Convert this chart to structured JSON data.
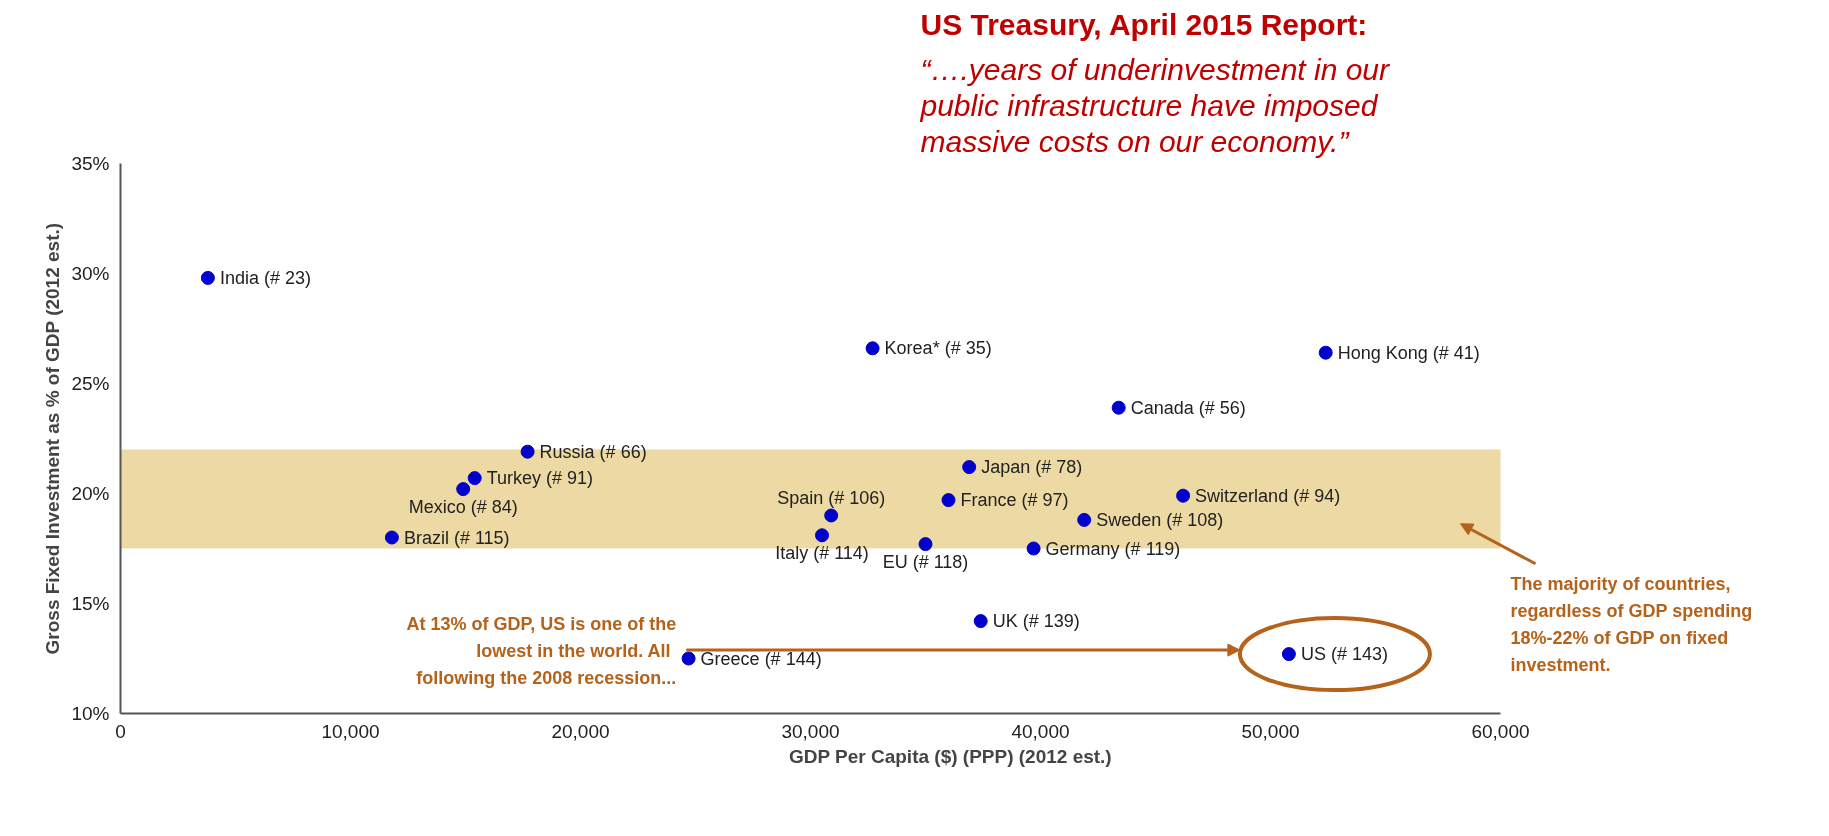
{
  "chart_data": {
    "type": "scatter",
    "title": "US Treasury, April 2015 Report:",
    "subtitle": "“….years of underinvestment in our public infrastructure have imposed massive costs on our economy.”",
    "xlabel": "GDP Per Capita ($) (PPP) (2012 est.)",
    "ylabel": "Gross Fixed Investment as % of GDP (2012 est.)",
    "xlim": [
      0,
      60000
    ],
    "ylim": [
      10,
      35
    ],
    "xticks": [
      0,
      {
        "value": 10000,
        "label": "10,000"
      },
      {
        "value": 20000,
        "label": "20,000"
      },
      {
        "value": 30000,
        "label": "30,000"
      },
      {
        "value": 40000,
        "label": "40,000"
      },
      {
        "value": 50000,
        "label": "50,000"
      },
      {
        "value": 60000,
        "label": "60,000"
      }
    ],
    "yticks": [
      {
        "value": 10,
        "label": "10%"
      },
      {
        "value": 15,
        "label": "15%"
      },
      {
        "value": 20,
        "label": "20%"
      },
      {
        "value": 25,
        "label": "25%"
      },
      {
        "value": 30,
        "label": "30%"
      },
      {
        "value": 35,
        "label": "35%"
      }
    ],
    "grid": false,
    "legend": false,
    "marker": "circle",
    "bands": [
      {
        "axis": "y",
        "from": 17.5,
        "to": 22,
        "color": "#ecd9a3"
      }
    ],
    "annotations": [
      "At 13% of GDP, US is one of the lowest in the world.  All following the 2008 recession...",
      "The majority of countries, regardless of GDP spending 18%-22% of GDP on fixed investment."
    ],
    "series": [
      {
        "name": "India (# 23)",
        "color": "#0000cc",
        "x": [
          3800
        ],
        "values": [
          29.8
        ]
      },
      {
        "name": "Korea* (# 35)",
        "color": "#0000cc",
        "x": [
          32700
        ],
        "values": [
          26.6
        ]
      },
      {
        "name": "Hong Kong (# 41)",
        "color": "#0000cc",
        "x": [
          52400
        ],
        "values": [
          26.4
        ]
      },
      {
        "name": "Canada (# 56)",
        "color": "#0000cc",
        "x": [
          43400
        ],
        "values": [
          23.9
        ]
      },
      {
        "name": "Russia (# 66)",
        "color": "#0000cc",
        "x": [
          17700
        ],
        "values": [
          21.9
        ]
      },
      {
        "name": "Japan (# 78)",
        "color": "#0000cc",
        "x": [
          36900
        ],
        "values": [
          21.2
        ]
      },
      {
        "name": "Turkey (# 91)",
        "color": "#0000cc",
        "x": [
          15400
        ],
        "values": [
          20.7
        ]
      },
      {
        "name": "Mexico (# 84)",
        "color": "#0000cc",
        "x": [
          14900
        ],
        "values": [
          20.2
        ]
      },
      {
        "name": "Switzerland (# 94)",
        "color": "#0000cc",
        "x": [
          46200
        ],
        "values": [
          19.9
        ]
      },
      {
        "name": "France (# 97)",
        "color": "#0000cc",
        "x": [
          36000
        ],
        "values": [
          19.7
        ]
      },
      {
        "name": "Spain (# 106)",
        "color": "#0000cc",
        "x": [
          30900
        ],
        "values": [
          19.0
        ]
      },
      {
        "name": "Sweden (# 108)",
        "color": "#0000cc",
        "x": [
          41900
        ],
        "values": [
          18.8
        ]
      },
      {
        "name": "Brazil (# 115)",
        "color": "#0000cc",
        "x": [
          11800
        ],
        "values": [
          18.0
        ]
      },
      {
        "name": "Italy (# 114)",
        "color": "#0000cc",
        "x": [
          30500
        ],
        "values": [
          18.1
        ]
      },
      {
        "name": "EU (# 118)",
        "color": "#0000cc",
        "x": [
          35000
        ],
        "values": [
          17.7
        ]
      },
      {
        "name": "Germany (# 119)",
        "color": "#0000cc",
        "x": [
          39700
        ],
        "values": [
          17.5
        ]
      },
      {
        "name": "UK (# 139)",
        "color": "#0000cc",
        "x": [
          37400
        ],
        "values": [
          14.2
        ]
      },
      {
        "name": "Greece (# 144)",
        "color": "#0000cc",
        "x": [
          24700
        ],
        "values": [
          12.5
        ]
      },
      {
        "name": "US (# 143)",
        "color": "#0000cc",
        "x": [
          50800
        ],
        "values": [
          12.7
        ]
      }
    ]
  }
}
